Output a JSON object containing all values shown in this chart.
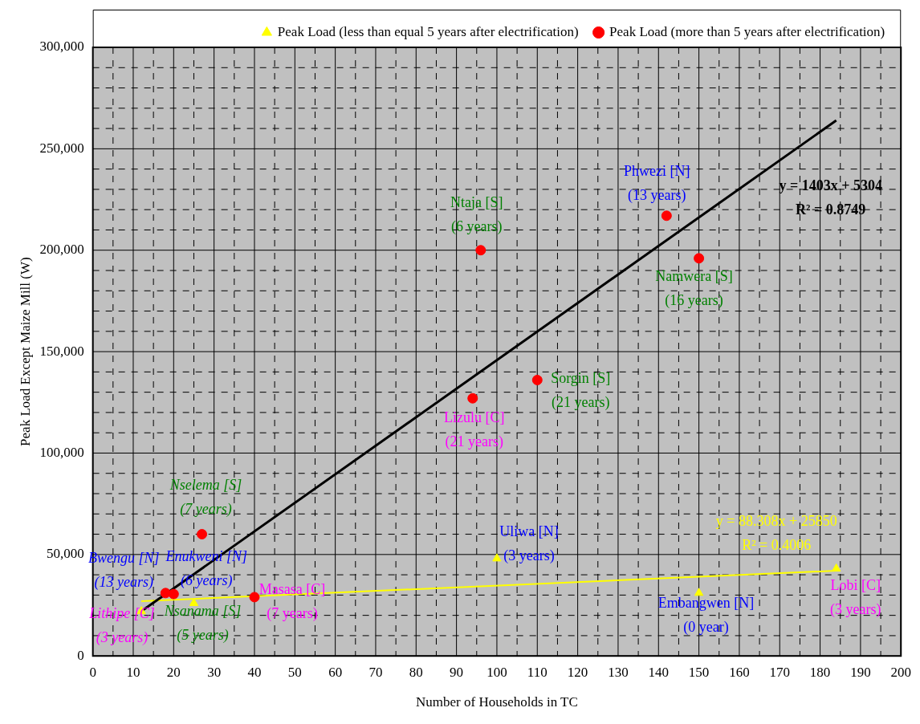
{
  "chart_data": {
    "type": "scatter",
    "xlabel": "Number of Households in TC",
    "ylabel": "Peak Load Except Maize Mill (W)",
    "xlim": [
      0,
      200
    ],
    "xticks": [
      0,
      {
        "value": 5,
        "label": null
      },
      10,
      {
        "value": 15,
        "label": null
      },
      20,
      {
        "value": 25,
        "label": null
      },
      30,
      {
        "value": 35,
        "label": null
      },
      40,
      {
        "value": 45,
        "label": null
      },
      50,
      {
        "value": 55,
        "label": null
      },
      60,
      {
        "value": 65,
        "label": null
      },
      70,
      {
        "value": 75,
        "label": null
      },
      80,
      {
        "value": 85,
        "label": null
      },
      90,
      {
        "value": 95,
        "label": null
      },
      100,
      {
        "value": 105,
        "label": null
      },
      110,
      {
        "value": 115,
        "label": null
      },
      120,
      {
        "value": 125,
        "label": null
      },
      130,
      {
        "value": 135,
        "label": null
      },
      140,
      {
        "value": 145,
        "label": null
      },
      150,
      {
        "value": 155,
        "label": null
      },
      160,
      {
        "value": 165,
        "label": null
      },
      170,
      {
        "value": 175,
        "label": null
      },
      180,
      {
        "value": 185,
        "label": null
      },
      190,
      {
        "value": 195,
        "label": null
      },
      200
    ],
    "ylim": [
      0,
      300000
    ],
    "yticks": [
      0,
      {
        "value": 10000,
        "label": null
      },
      {
        "value": 20000,
        "label": null
      },
      {
        "value": 30000,
        "label": null
      },
      {
        "value": 40000,
        "label": null
      },
      {
        "value": 50000,
        "label": "50,000"
      },
      {
        "value": 60000,
        "label": null
      },
      {
        "value": 70000,
        "label": null
      },
      {
        "value": 80000,
        "label": null
      },
      {
        "value": 90000,
        "label": null
      },
      {
        "value": 100000,
        "label": "100,000"
      },
      {
        "value": 110000,
        "label": null
      },
      {
        "value": 120000,
        "label": null
      },
      {
        "value": 130000,
        "label": null
      },
      {
        "value": 140000,
        "label": null
      },
      {
        "value": 150000,
        "label": "150,000"
      },
      {
        "value": 160000,
        "label": null
      },
      {
        "value": 170000,
        "label": null
      },
      {
        "value": 180000,
        "label": null
      },
      {
        "value": 190000,
        "label": null
      },
      {
        "value": 200000,
        "label": "200,000"
      },
      {
        "value": 210000,
        "label": null
      },
      {
        "value": 220000,
        "label": null
      },
      {
        "value": 230000,
        "label": null
      },
      {
        "value": 240000,
        "label": null
      },
      {
        "value": 250000,
        "label": "250,000"
      },
      {
        "value": 260000,
        "label": null
      },
      {
        "value": 270000,
        "label": null
      },
      {
        "value": 280000,
        "label": null
      },
      {
        "value": 290000,
        "label": null
      },
      {
        "value": 300000,
        "label": "300,000"
      }
    ],
    "grid": true,
    "legend": "top right",
    "series": [
      {
        "name": "Peak Load (less than equal 5 years after electrification)",
        "marker": "triangle",
        "color": "#ffff00",
        "x": [
          12,
          25,
          100,
          150,
          184
        ],
        "values": [
          22000,
          26000,
          48000,
          31000,
          43000
        ]
      },
      {
        "name": "Peak Load (more than 5 years after electrification)",
        "marker": "circle",
        "color": "#ff0000",
        "x": [
          18,
          20,
          27,
          40,
          94,
          96,
          110,
          142,
          150
        ],
        "values": [
          31000,
          30500,
          60000,
          29000,
          127000,
          200000,
          136000,
          217000,
          196000
        ]
      },
      {
        "type": "line",
        "marker": "none",
        "color": "#000000",
        "x": [
          12,
          184
        ],
        "values": [
          22000,
          264000
        ]
      },
      {
        "type": "line",
        "marker": "none",
        "color": "#ffff00",
        "x": [
          12,
          184
        ],
        "values": [
          27000,
          42000
        ]
      }
    ],
    "annotations": [
      {
        "text": "Bwengu [N]\n(13 years)",
        "x": 18,
        "y": 31000
      },
      {
        "text": "Enukweni [N]\n(6 years)",
        "x": 20,
        "y": 30500
      },
      {
        "text": "Nselema [S]\n(7 years)",
        "x": 27,
        "y": 60000
      },
      {
        "text": "Masasa [C]\n(7 years)",
        "x": 40,
        "y": 29000
      },
      {
        "text": "Ntaja [S]\n(6 years)",
        "x": 96,
        "y": 200000
      },
      {
        "text": "Lizulu [C]\n(21 years)",
        "x": 94,
        "y": 127000
      },
      {
        "text": "Sorgin [S]\n(21 years)",
        "x": 110,
        "y": 136000
      },
      {
        "text": "Phwezi [N]\n(13 years)",
        "x": 142,
        "y": 217000
      },
      {
        "text": "Namwera [S]\n(16 years)",
        "x": 150,
        "y": 196000
      },
      {
        "text": "Lithipe [C]\n(3 years)",
        "x": 12,
        "y": 22000
      },
      {
        "text": "Nsanama [S]\n(5 years)",
        "x": 25,
        "y": 26000
      },
      {
        "text": "Uliwa [N]\n(3 years)",
        "x": 100,
        "y": 48000
      },
      {
        "text": "Embangwen [N]\n(0 year)",
        "x": 150,
        "y": 31000
      },
      {
        "text": "Lobi [C]\n(3 years)",
        "x": 184,
        "y": 43000
      },
      "y = 1403x + 5304\nR² = 0.8749",
      "y = 88.308x + 25850\nR² = 0.4006"
    ]
  }
}
